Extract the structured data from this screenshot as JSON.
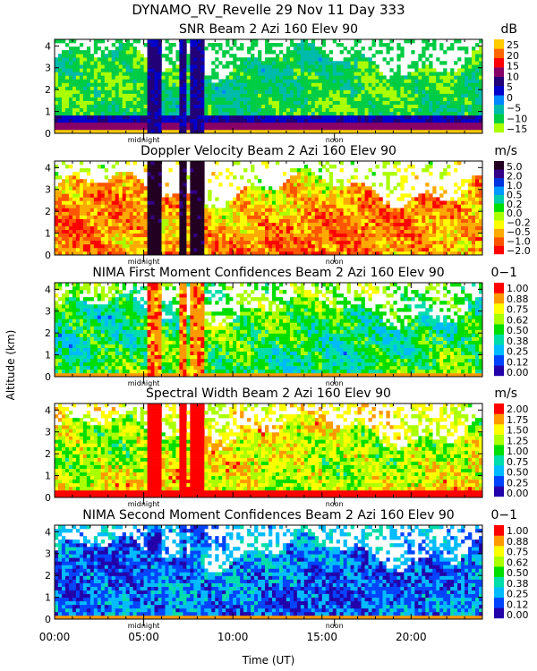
{
  "header": {
    "title": "DYNAMO_RV_Revelle   29 Nov 11 Day 333"
  },
  "colors": {
    "missing": "#ffffff",
    "axis": "#000000"
  },
  "chart_data": [
    {
      "type": "heatmap",
      "title": "SNR Beam 2 Azi 160 Elev 90",
      "units": "dB",
      "field": "snr",
      "xlabel": "",
      "ylabel": "",
      "xlim": [
        0,
        24
      ],
      "ylim": [
        0,
        4.3
      ],
      "yticks": [
        0,
        1,
        2,
        3,
        4
      ],
      "x_markers": [
        {
          "x": 5.0,
          "label": "midnight"
        },
        {
          "x": 15.7,
          "label": "noon"
        }
      ],
      "colorbar_ticks": [
        "25",
        "20",
        "15",
        "10",
        "5",
        "0",
        "−5",
        "−10",
        "−15"
      ],
      "palette": [
        "#aaff00",
        "#00cc44",
        "#00bbaa",
        "#0088ff",
        "#0000cc",
        "#220077",
        "#880066",
        "#ff0000",
        "#ff6600",
        "#ffcc00"
      ]
    },
    {
      "type": "heatmap",
      "title": "Doppler Velocity Beam 2 Azi 160 Elev 90",
      "units": "m/s",
      "field": "velocity",
      "xlabel": "",
      "ylabel": "",
      "xlim": [
        0,
        24
      ],
      "ylim": [
        0,
        4.3
      ],
      "yticks": [
        0,
        1,
        2,
        3,
        4
      ],
      "x_markers": [
        {
          "x": 5.0,
          "label": "midnight"
        },
        {
          "x": 15.7,
          "label": "noon"
        }
      ],
      "colorbar_ticks": [
        "5.0",
        "2.0",
        "1.0",
        "0.5",
        "0.2",
        "0.0",
        "−0.2",
        "−0.5",
        "−1.0",
        "−2.0"
      ],
      "palette": [
        "#ff0000",
        "#ff5500",
        "#ffaa00",
        "#ffff00",
        "#aaff00",
        "#00dd00",
        "#00ccaa",
        "#0099ff",
        "#0033dd",
        "#330088",
        "#220022"
      ]
    },
    {
      "type": "heatmap",
      "title": "NIMA First Moment Confidences Beam 2 Azi 160 Elev 90",
      "units": "0−1",
      "field": "conf1",
      "xlabel": "",
      "ylabel": "Altitude (km)",
      "xlim": [
        0,
        24
      ],
      "ylim": [
        0,
        4.3
      ],
      "yticks": [
        0,
        1,
        2,
        3,
        4
      ],
      "x_markers": [
        {
          "x": 5.0,
          "label": "midnight"
        },
        {
          "x": 15.7,
          "label": "noon"
        }
      ],
      "colorbar_ticks": [
        "1.00",
        "0.88",
        "0.75",
        "0.62",
        "0.50",
        "0.38",
        "0.25",
        "0.12",
        "0.00"
      ],
      "palette": [
        "#2200aa",
        "#0044ff",
        "#00bbff",
        "#00ddaa",
        "#00dd00",
        "#aaff00",
        "#ffff00",
        "#ff9900",
        "#ff0000"
      ]
    },
    {
      "type": "heatmap",
      "title": "Spectral Width Beam 2 Azi 160 Elev 90",
      "units": "m/s",
      "field": "width",
      "xlabel": "",
      "ylabel": "",
      "xlim": [
        0,
        24
      ],
      "ylim": [
        0,
        4.3
      ],
      "yticks": [
        0,
        1,
        2,
        3,
        4
      ],
      "x_markers": [
        {
          "x": 5.0,
          "label": "midnight"
        },
        {
          "x": 15.7,
          "label": "noon"
        }
      ],
      "colorbar_ticks": [
        "2.00",
        "1.75",
        "1.50",
        "1.25",
        "1.00",
        "0.75",
        "0.50",
        "0.25",
        "0.00"
      ],
      "palette": [
        "#2200aa",
        "#0044ff",
        "#00bbff",
        "#00ddaa",
        "#00dd00",
        "#aaff00",
        "#ffff00",
        "#ff9900",
        "#ff0000"
      ]
    },
    {
      "type": "heatmap",
      "title": "NIMA Second Moment Confidences Beam 2 Azi 160 Elev 90",
      "units": "0−1",
      "field": "conf2",
      "xlabel": "Time (UT)",
      "ylabel": "",
      "xlim": [
        0,
        24
      ],
      "ylim": [
        0,
        4.3
      ],
      "yticks": [
        0,
        1,
        2,
        3,
        4
      ],
      "xticks": [
        0,
        5,
        10,
        15,
        20
      ],
      "xtick_labels": [
        "00:00",
        "05:00",
        "10:00",
        "15:00",
        "20:00"
      ],
      "x_markers": [
        {
          "x": 5.0,
          "label": "midnight"
        },
        {
          "x": 15.7,
          "label": "noon"
        }
      ],
      "colorbar_ticks": [
        "1.00",
        "0.88",
        "0.75",
        "0.62",
        "0.50",
        "0.38",
        "0.25",
        "0.12",
        "0.00"
      ],
      "palette": [
        "#2200aa",
        "#0044ff",
        "#00bbff",
        "#00ddaa",
        "#00dd00",
        "#aaff00",
        "#ffff00",
        "#ff9900",
        "#ff0000"
      ]
    }
  ]
}
